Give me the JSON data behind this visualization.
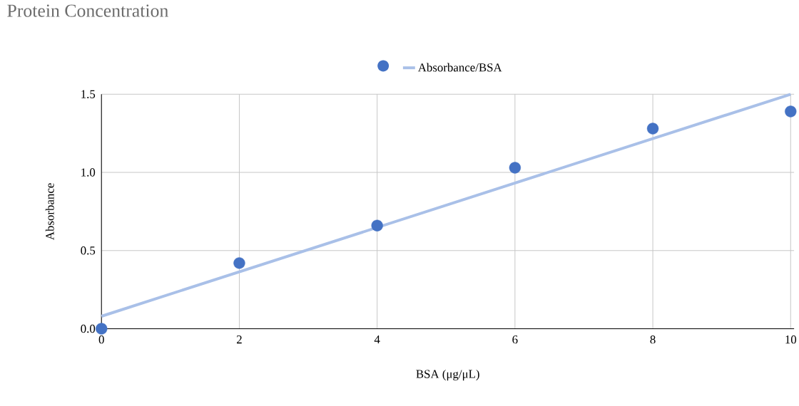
{
  "chart_data": {
    "type": "scatter",
    "title": "Protein Concentration",
    "xlabel": "BSA (μg/μL)",
    "ylabel": "Absorbance",
    "x": [
      0,
      2,
      4,
      6,
      8,
      10
    ],
    "series": [
      {
        "color": "#4472c4",
        "values": [
          0,
          0.42,
          0.66,
          1.03,
          1.28,
          1.39
        ],
        "marker": "circle"
      },
      {
        "name": "Absorbance/BSA",
        "type": "line",
        "color": "#a9c0e8",
        "x": [
          0,
          10
        ],
        "values": [
          0.08,
          1.5
        ],
        "marker": "none"
      }
    ],
    "xlim": [
      0,
      10.05
    ],
    "ylim": [
      0,
      1.5
    ],
    "xticks": [
      0,
      2,
      4,
      6,
      8,
      10
    ],
    "yticks": [
      {
        "value": 0,
        "label": "0.0"
      },
      {
        "value": 0.5,
        "label": "0.5"
      },
      {
        "value": 1,
        "label": "1.0"
      },
      {
        "value": 1.5,
        "label": "1.5"
      }
    ],
    "grid": true,
    "legend": "top"
  }
}
